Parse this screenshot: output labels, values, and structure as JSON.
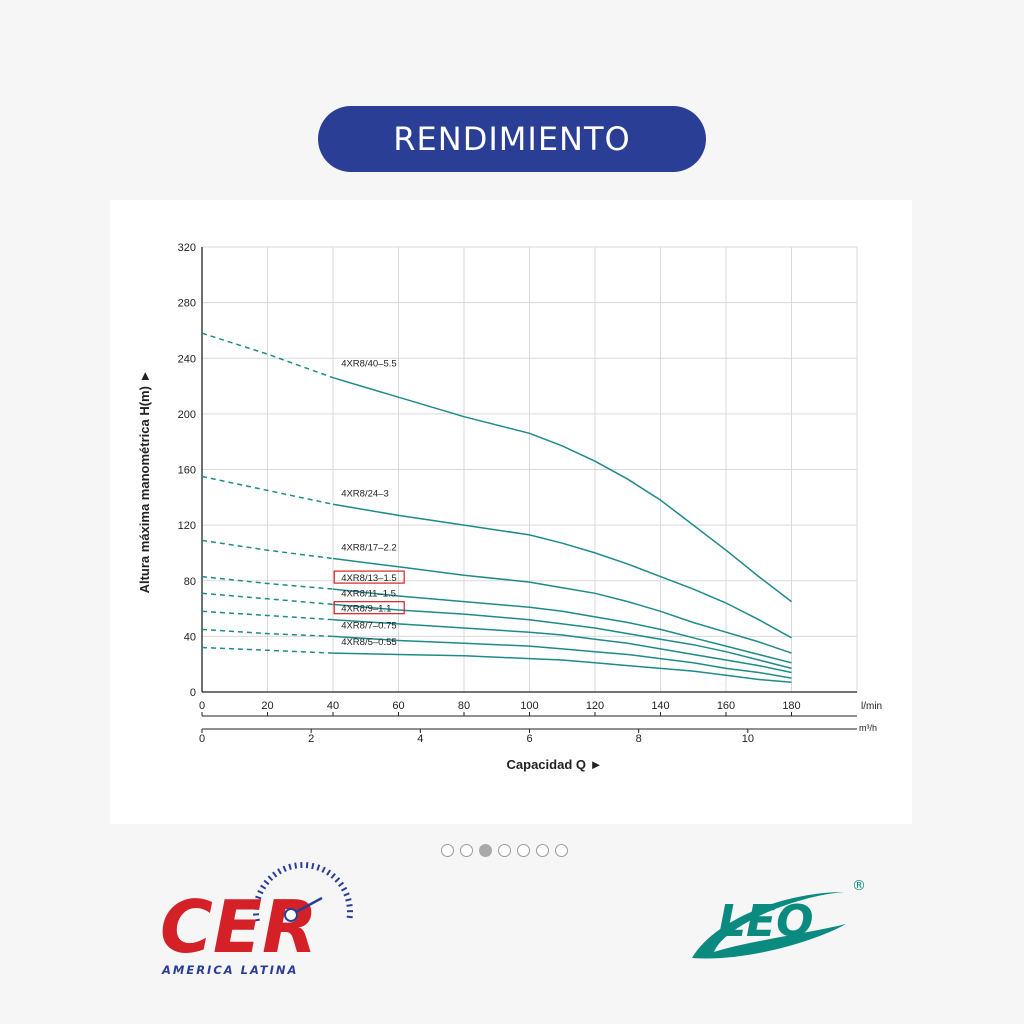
{
  "header": {
    "title": "RENDIMIENTO"
  },
  "carousel": {
    "count": 7,
    "active_index": 2
  },
  "logos": {
    "left": {
      "name": "CER",
      "subtitle": "AMERICA LATINA",
      "color": "#d42027",
      "subtitle_color": "#2b3e96"
    },
    "right": {
      "name": "LEO",
      "mark": "®",
      "color": "#0b8a7f"
    }
  },
  "chart_data": {
    "type": "line",
    "ylabel": "Altura máxima manométrica H(m) ►",
    "xlabel": "Capacidad Q ►",
    "x_unit_primary": "l/min",
    "x_unit_secondary": "m³/h",
    "xlim": [
      0,
      200
    ],
    "ylim": [
      0,
      320
    ],
    "x_ticks": [
      0,
      20,
      40,
      60,
      80,
      100,
      120,
      140,
      160,
      180
    ],
    "y_ticks": [
      0,
      40,
      80,
      120,
      160,
      200,
      240,
      280,
      320
    ],
    "x2_ticks": [
      0,
      2,
      4,
      6,
      8,
      10
    ],
    "grid": true,
    "line_color": "#1f8a8a",
    "highlight_color": "#d42027",
    "dashed_until_x": 40,
    "series": [
      {
        "name": "4XR8/40–5.5",
        "highlighted": false,
        "points": [
          [
            0,
            258
          ],
          [
            20,
            243
          ],
          [
            40,
            226
          ],
          [
            60,
            212
          ],
          [
            80,
            198
          ],
          [
            100,
            186
          ],
          [
            110,
            177
          ],
          [
            120,
            166
          ],
          [
            130,
            153
          ],
          [
            140,
            138
          ],
          [
            150,
            120
          ],
          [
            160,
            102
          ],
          [
            170,
            83
          ],
          [
            180,
            65
          ]
        ]
      },
      {
        "name": "4XR8/24–3",
        "highlighted": false,
        "points": [
          [
            0,
            155
          ],
          [
            20,
            145
          ],
          [
            40,
            135
          ],
          [
            60,
            127
          ],
          [
            80,
            120
          ],
          [
            100,
            113
          ],
          [
            110,
            107
          ],
          [
            120,
            100
          ],
          [
            130,
            92
          ],
          [
            140,
            83
          ],
          [
            150,
            74
          ],
          [
            160,
            64
          ],
          [
            170,
            52
          ],
          [
            180,
            39
          ]
        ]
      },
      {
        "name": "4XR8/17–2.2",
        "highlighted": false,
        "points": [
          [
            0,
            109
          ],
          [
            20,
            102
          ],
          [
            40,
            96
          ],
          [
            60,
            90
          ],
          [
            80,
            84
          ],
          [
            100,
            79
          ],
          [
            110,
            75
          ],
          [
            120,
            71
          ],
          [
            130,
            65
          ],
          [
            140,
            58
          ],
          [
            150,
            50
          ],
          [
            160,
            43
          ],
          [
            170,
            36
          ],
          [
            180,
            28
          ]
        ]
      },
      {
        "name": "4XR8/13–1.5",
        "highlighted": true,
        "points": [
          [
            0,
            83
          ],
          [
            20,
            78
          ],
          [
            40,
            74
          ],
          [
            60,
            69
          ],
          [
            80,
            65
          ],
          [
            100,
            61
          ],
          [
            110,
            58
          ],
          [
            120,
            54
          ],
          [
            130,
            50
          ],
          [
            140,
            45
          ],
          [
            150,
            39
          ],
          [
            160,
            33
          ],
          [
            170,
            27
          ],
          [
            180,
            21
          ]
        ]
      },
      {
        "name": "4XR8/11–1.5",
        "highlighted": false,
        "points": [
          [
            0,
            71
          ],
          [
            20,
            67
          ],
          [
            40,
            63
          ],
          [
            60,
            59
          ],
          [
            80,
            56
          ],
          [
            100,
            52
          ],
          [
            110,
            49
          ],
          [
            120,
            46
          ],
          [
            130,
            42
          ],
          [
            140,
            38
          ],
          [
            150,
            34
          ],
          [
            160,
            29
          ],
          [
            170,
            23
          ],
          [
            180,
            17
          ]
        ]
      },
      {
        "name": "4XR8/9–1.1",
        "highlighted": true,
        "points": [
          [
            0,
            58
          ],
          [
            20,
            55
          ],
          [
            40,
            52
          ],
          [
            60,
            49
          ],
          [
            80,
            46
          ],
          [
            100,
            43
          ],
          [
            110,
            41
          ],
          [
            120,
            38
          ],
          [
            130,
            35
          ],
          [
            140,
            31
          ],
          [
            150,
            27
          ],
          [
            160,
            23
          ],
          [
            170,
            19
          ],
          [
            180,
            14
          ]
        ]
      },
      {
        "name": "4XR8/7–0.75",
        "highlighted": false,
        "points": [
          [
            0,
            45
          ],
          [
            20,
            42
          ],
          [
            40,
            40
          ],
          [
            60,
            37
          ],
          [
            80,
            35
          ],
          [
            100,
            33
          ],
          [
            110,
            31
          ],
          [
            120,
            29
          ],
          [
            130,
            27
          ],
          [
            140,
            24
          ],
          [
            150,
            21
          ],
          [
            160,
            17
          ],
          [
            170,
            14
          ],
          [
            180,
            10
          ]
        ]
      },
      {
        "name": "4XR8/5–0.55",
        "highlighted": false,
        "points": [
          [
            0,
            32
          ],
          [
            20,
            30
          ],
          [
            40,
            28
          ],
          [
            60,
            27
          ],
          [
            80,
            26
          ],
          [
            100,
            24
          ],
          [
            110,
            23
          ],
          [
            120,
            21
          ],
          [
            130,
            19
          ],
          [
            140,
            17
          ],
          [
            150,
            15
          ],
          [
            160,
            12
          ],
          [
            170,
            9
          ],
          [
            180,
            7
          ]
        ]
      }
    ]
  }
}
